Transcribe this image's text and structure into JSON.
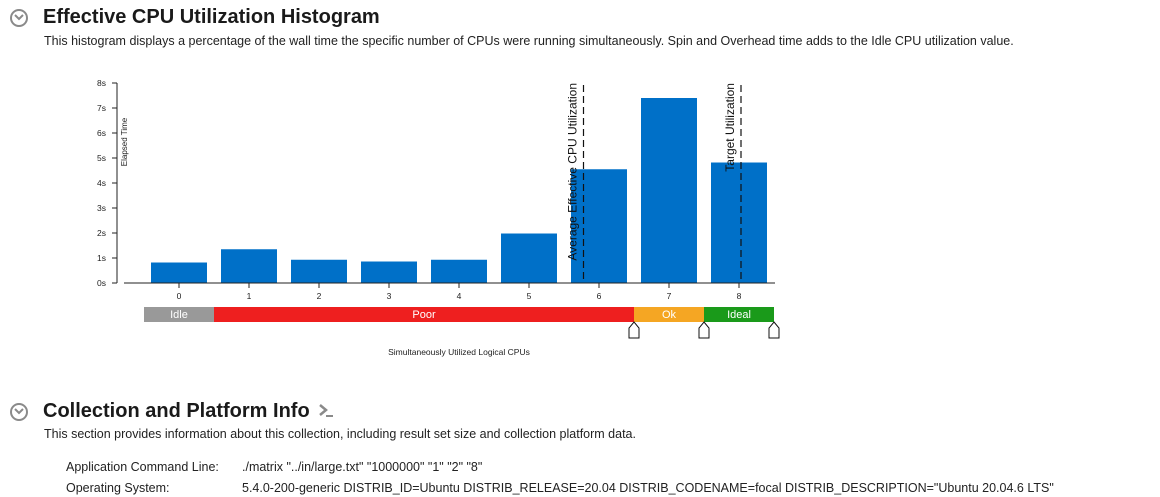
{
  "histogram_section": {
    "title": "Effective CPU Utilization Histogram",
    "description": "This histogram displays a percentage of the wall time the specific number of CPUs were running simultaneously. Spin and Overhead time adds to the Idle CPU utilization value."
  },
  "chart_data": {
    "type": "bar",
    "categories": [
      "0",
      "1",
      "2",
      "3",
      "4",
      "5",
      "6",
      "7",
      "8"
    ],
    "values": [
      0.82,
      1.35,
      0.93,
      0.86,
      0.93,
      1.98,
      4.55,
      7.4,
      4.82
    ],
    "ylabel": "Elapsed Time",
    "xlabel": "Simultaneously Utilized Logical CPUs",
    "ylim": [
      0,
      8
    ],
    "yticks": [
      "0s",
      "1s",
      "2s",
      "3s",
      "4s",
      "5s",
      "6s",
      "7s",
      "8s"
    ],
    "bar_color": "#0070c8",
    "markers": [
      {
        "label": "Average Effective CPU Utilization",
        "x": 5.75
      },
      {
        "label": "Target Utilization",
        "x": 8.0
      }
    ],
    "bands": [
      {
        "label": "Idle",
        "from": -0.5,
        "to": 0.5,
        "color": "#999999"
      },
      {
        "label": "Poor",
        "from": 0.5,
        "to": 6.5,
        "color": "#ee1f1f"
      },
      {
        "label": "Ok",
        "from": 6.5,
        "to": 7.5,
        "color": "#f5a623"
      },
      {
        "label": "Ideal",
        "from": 7.5,
        "to": 8.5,
        "color": "#1a9a1a"
      }
    ]
  },
  "collection_section": {
    "title": "Collection and Platform Info",
    "description": "This section provides information about this collection, including result set size and collection platform data.",
    "rows": [
      {
        "label": "Application Command Line:",
        "value": "./matrix \"../in/large.txt\" \"1000000\" \"1\" \"2\" \"8\""
      },
      {
        "label": "Operating System:",
        "value": "5.4.0-200-generic DISTRIB_ID=Ubuntu DISTRIB_RELEASE=20.04 DISTRIB_CODENAME=focal DISTRIB_DESCRIPTION=\"Ubuntu 20.04.6 LTS\""
      }
    ]
  }
}
